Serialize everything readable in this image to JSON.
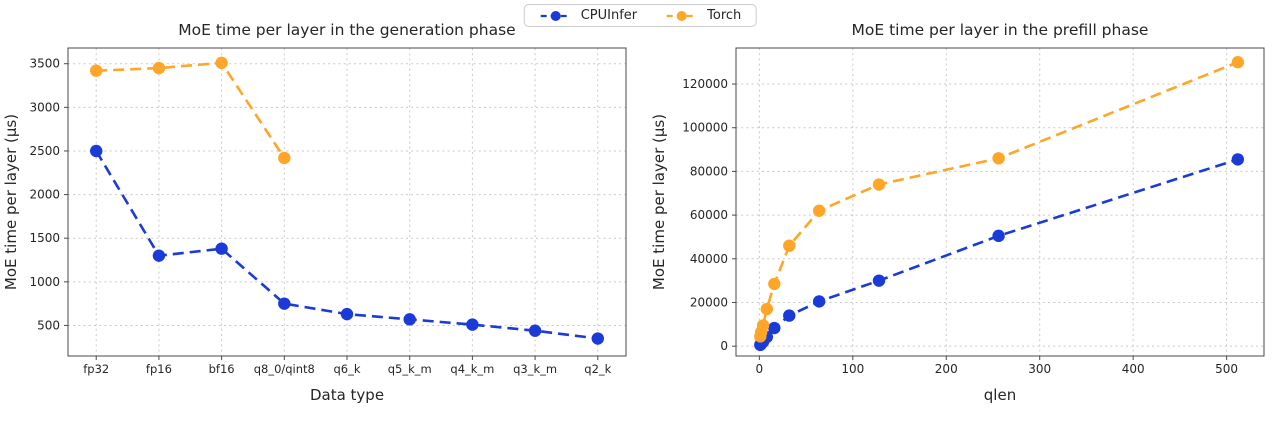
{
  "legend": {
    "items": [
      {
        "label": "CPUInfer",
        "color": "#1b3bd8"
      },
      {
        "label": "Torch",
        "color": "#ffa628"
      }
    ]
  },
  "chart_data": [
    {
      "type": "line",
      "title": "MoE time per layer in the generation phase",
      "xlabel": "Data type",
      "ylabel": "MoE time per layer (μs)",
      "x_type": "category",
      "categories": [
        "fp32",
        "fp16",
        "bf16",
        "q8_0/qint8",
        "q6_k",
        "q5_k_m",
        "q4_k_m",
        "q3_k_m",
        "q2_k"
      ],
      "ylim": [
        150,
        3680
      ],
      "yticks": [
        500,
        1000,
        1500,
        2000,
        2500,
        3000,
        3500
      ],
      "grid": true,
      "line_style": "dashed",
      "legend_position": "figure-top-center",
      "series": [
        {
          "name": "CPUInfer",
          "color": "#1b3bd8",
          "values": [
            2500,
            1300,
            1380,
            750,
            630,
            570,
            510,
            440,
            350
          ]
        },
        {
          "name": "Torch",
          "color": "#ffa628",
          "values": [
            3420,
            3450,
            3510,
            2420,
            null,
            null,
            null,
            null,
            null
          ]
        }
      ]
    },
    {
      "type": "line",
      "title": "MoE time per layer in the prefill phase",
      "xlabel": "qlen",
      "ylabel": "MoE time per layer (μs)",
      "x_type": "linear",
      "x": [
        1,
        2,
        4,
        8,
        16,
        32,
        64,
        128,
        256,
        512
      ],
      "xlim": [
        -25,
        540
      ],
      "xticks": [
        0,
        100,
        200,
        300,
        400,
        500
      ],
      "ylim": [
        -4500,
        136500
      ],
      "yticks": [
        0,
        20000,
        40000,
        60000,
        80000,
        100000,
        120000
      ],
      "grid": true,
      "line_style": "dashed",
      "series": [
        {
          "name": "CPUInfer",
          "color": "#1b3bd8",
          "values": [
            600,
            1100,
            2100,
            4200,
            8300,
            14000,
            20500,
            30000,
            50500,
            85500
          ]
        },
        {
          "name": "Torch",
          "color": "#ffa628",
          "values": [
            4500,
            6500,
            9500,
            17000,
            28500,
            46000,
            62000,
            74000,
            86000,
            130000
          ]
        }
      ]
    }
  ]
}
